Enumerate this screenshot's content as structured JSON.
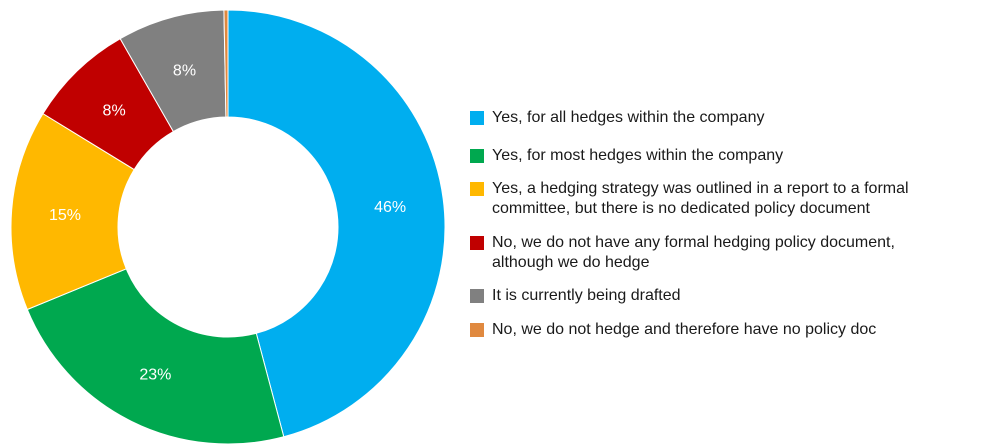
{
  "chart_data": {
    "type": "pie",
    "donut": true,
    "categories": [
      "Yes, for all hedges within the company",
      "Yes, for most hedges within the company",
      "Yes, a hedging strategy was outlined in a report to a formal committee, but there is no dedicated policy document",
      "No, we do not have any formal hedging policy document, although we do hedge",
      "It is currently being drafted",
      "No, we do not hedge and therefore have no policy doc"
    ],
    "values": [
      46,
      23,
      15,
      8,
      8,
      0.3
    ],
    "data_labels": [
      "46%",
      "23%",
      "15%",
      "8%",
      "8%",
      ""
    ],
    "colors": [
      "#00AEEF",
      "#00A84F",
      "#FFB800",
      "#C00000",
      "#808080",
      "#E0893F"
    ],
    "legend_position": "right",
    "legend": [
      {
        "color": "#00AEEF",
        "lines": [
          "Yes, for all hedges within the company"
        ]
      },
      {
        "color": "#00A84F",
        "lines": [
          "Yes, for most hedges within the company"
        ]
      },
      {
        "color": "#FFB800",
        "lines": [
          "Yes, a hedging strategy was outlined in a report to a formal",
          "committee, but there is no dedicated policy document"
        ]
      },
      {
        "color": "#C00000",
        "lines": [
          "No, we do not have any formal hedging policy document,",
          "although we do hedge"
        ]
      },
      {
        "color": "#808080",
        "lines": [
          "It is currently being drafted"
        ]
      },
      {
        "color": "#E0893F",
        "lines": [
          "No, we do not hedge and therefore have no policy doc"
        ]
      }
    ]
  }
}
